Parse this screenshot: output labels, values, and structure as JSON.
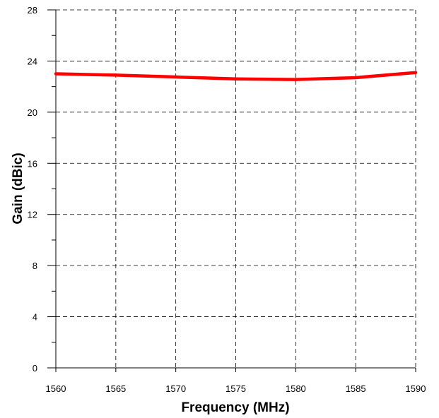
{
  "chart_data": {
    "type": "line",
    "xlabel": "Frequency (MHz)",
    "ylabel": "Gain (dBic)",
    "xlim": [
      1560,
      1590
    ],
    "ylim": [
      0,
      28
    ],
    "x_ticks": [
      1560,
      1565,
      1570,
      1575,
      1580,
      1585,
      1590
    ],
    "y_ticks": [
      0,
      4,
      8,
      12,
      16,
      20,
      24,
      28
    ],
    "y_minor_step": 2,
    "grid": true,
    "grid_style": "dashed",
    "series": [
      {
        "color": "#ff0000",
        "x": [
          1560,
          1565,
          1570,
          1575,
          1580,
          1585,
          1590
        ],
        "y": [
          23.0,
          22.9,
          22.75,
          22.6,
          22.55,
          22.7,
          23.1
        ]
      }
    ]
  }
}
